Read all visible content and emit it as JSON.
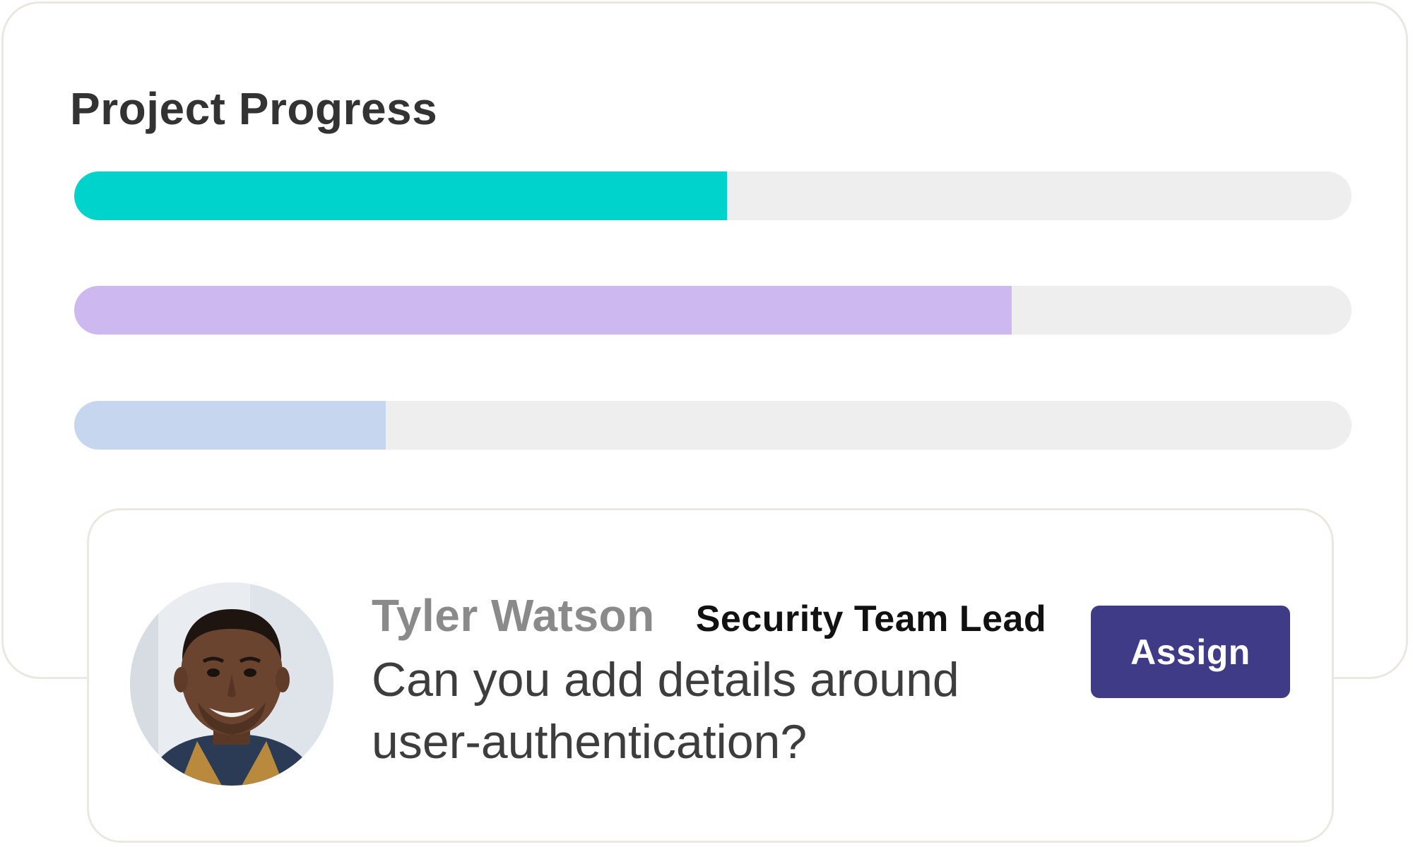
{
  "progress": {
    "title": "Project Progress",
    "bars": [
      {
        "fraction": 0.511,
        "color": "#00d3cc"
      },
      {
        "fraction": 0.734,
        "color": "#cdb8ef"
      },
      {
        "fraction": 0.244,
        "color": "#c6d6ee"
      }
    ]
  },
  "comment": {
    "author_name": "Tyler Watson",
    "author_role": "Security Team Lead",
    "message": "Can you add details around user-authentication?",
    "assign_label": "Assign",
    "assign_color": "#3f3b86"
  }
}
